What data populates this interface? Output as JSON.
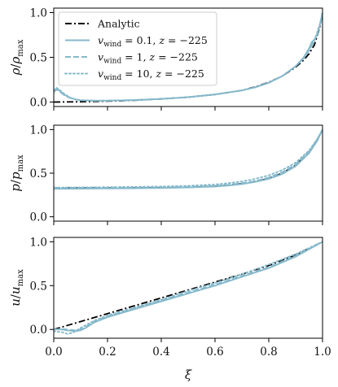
{
  "colors": {
    "analytic": "#000000",
    "numeric": "#86b9cb",
    "frame": "#000000",
    "legend_border": "#cccccc"
  },
  "chart_data": [
    {
      "type": "line",
      "ylabel": "ρ/ρ_max",
      "ylabel_parts": {
        "var": "ρ",
        "sep": "/",
        "base": "ρ",
        "sub": "max"
      },
      "xlim": [
        0.0,
        1.0
      ],
      "ylim": [
        -0.05,
        1.05
      ],
      "xticks": [
        0.0,
        0.2,
        0.4,
        0.6,
        0.8,
        1.0
      ],
      "xtick_labels_shown": false,
      "yticks": [
        0.0,
        0.5,
        1.0
      ],
      "ytick_labels": [
        "0.0",
        "0.5",
        "1.0"
      ],
      "legend": {
        "placement": "top-left",
        "entries": [
          {
            "style": "dashdot",
            "parts": [
              {
                "t": "Analytic"
              }
            ]
          },
          {
            "style": "solid",
            "parts": [
              {
                "t": "v",
                "i": true
              },
              {
                "t": "wind",
                "sub": true
              },
              {
                "t": " = 0.1, "
              },
              {
                "t": "z",
                "i": true
              },
              {
                "t": " = −225"
              }
            ]
          },
          {
            "style": "dashed",
            "parts": [
              {
                "t": "v",
                "i": true
              },
              {
                "t": "wind",
                "sub": true
              },
              {
                "t": " = 1, "
              },
              {
                "t": "z",
                "i": true
              },
              {
                "t": " = −225"
              }
            ]
          },
          {
            "style": "dotted",
            "parts": [
              {
                "t": "v",
                "i": true
              },
              {
                "t": "wind",
                "sub": true
              },
              {
                "t": " = 10, "
              },
              {
                "t": "z",
                "i": true
              },
              {
                "t": " = −225"
              }
            ]
          }
        ]
      },
      "series": [
        {
          "style": "dashdot",
          "color_key": "analytic",
          "x": [
            0.0,
            0.1,
            0.2,
            0.3,
            0.4,
            0.5,
            0.6,
            0.7,
            0.75,
            0.8,
            0.85,
            0.9,
            0.93,
            0.95,
            0.97,
            0.99,
            1.0
          ],
          "y": [
            0.0,
            0.003,
            0.01,
            0.02,
            0.035,
            0.055,
            0.085,
            0.13,
            0.17,
            0.22,
            0.29,
            0.39,
            0.47,
            0.54,
            0.64,
            0.84,
            1.0
          ]
        },
        {
          "style": "solid",
          "color_key": "numeric",
          "x": [
            0.0,
            0.01,
            0.02,
            0.04,
            0.06,
            0.08,
            0.1,
            0.15,
            0.2,
            0.3,
            0.4,
            0.5,
            0.6,
            0.7,
            0.75,
            0.8,
            0.85,
            0.9,
            0.93,
            0.95,
            0.96,
            0.97,
            0.98,
            0.99,
            1.0
          ],
          "y": [
            0.12,
            0.15,
            0.13,
            0.08,
            0.05,
            0.03,
            0.02,
            0.015,
            0.015,
            0.022,
            0.035,
            0.055,
            0.085,
            0.13,
            0.165,
            0.215,
            0.29,
            0.4,
            0.5,
            0.6,
            0.67,
            0.7,
            0.75,
            0.86,
            1.0
          ]
        },
        {
          "style": "dashed",
          "color_key": "numeric",
          "x": [
            0.0,
            0.01,
            0.02,
            0.04,
            0.06,
            0.08,
            0.1,
            0.15,
            0.2,
            0.3,
            0.4,
            0.5,
            0.6,
            0.7,
            0.75,
            0.8,
            0.85,
            0.9,
            0.93,
            0.95,
            0.97,
            0.99,
            1.0
          ],
          "y": [
            0.11,
            0.14,
            0.12,
            0.075,
            0.045,
            0.03,
            0.02,
            0.015,
            0.015,
            0.022,
            0.035,
            0.055,
            0.085,
            0.13,
            0.165,
            0.215,
            0.29,
            0.4,
            0.49,
            0.58,
            0.68,
            0.86,
            1.0
          ]
        },
        {
          "style": "dotted",
          "color_key": "numeric",
          "x": [
            0.0,
            0.01,
            0.02,
            0.04,
            0.06,
            0.08,
            0.1,
            0.15,
            0.2,
            0.3,
            0.4,
            0.5,
            0.6,
            0.7,
            0.75,
            0.8,
            0.85,
            0.9,
            0.93,
            0.95,
            0.97,
            0.99,
            1.0
          ],
          "y": [
            0.13,
            0.16,
            0.14,
            0.09,
            0.05,
            0.03,
            0.02,
            0.015,
            0.015,
            0.022,
            0.035,
            0.055,
            0.085,
            0.13,
            0.165,
            0.215,
            0.29,
            0.4,
            0.49,
            0.58,
            0.69,
            0.87,
            1.0
          ]
        }
      ]
    },
    {
      "type": "line",
      "ylabel": "p/p_max",
      "ylabel_parts": {
        "var": "p",
        "sep": "/",
        "base": "p",
        "sub": "max"
      },
      "xlim": [
        0.0,
        1.0
      ],
      "ylim": [
        -0.05,
        1.05
      ],
      "xticks": [
        0.0,
        0.2,
        0.4,
        0.6,
        0.8,
        1.0
      ],
      "xtick_labels_shown": false,
      "yticks": [
        0.0,
        0.5,
        1.0
      ],
      "ytick_labels": [
        "0.0",
        "0.5",
        "1.0"
      ],
      "series": [
        {
          "style": "dashdot",
          "color_key": "analytic",
          "x": [
            0.0,
            0.1,
            0.2,
            0.3,
            0.4,
            0.5,
            0.6,
            0.65,
            0.7,
            0.75,
            0.8,
            0.85,
            0.9,
            0.95,
            0.98,
            1.0
          ],
          "y": [
            0.33,
            0.33,
            0.33,
            0.331,
            0.333,
            0.338,
            0.35,
            0.362,
            0.38,
            0.405,
            0.44,
            0.5,
            0.59,
            0.74,
            0.88,
            1.0
          ]
        },
        {
          "style": "solid",
          "color_key": "numeric",
          "x": [
            0.0,
            0.1,
            0.2,
            0.3,
            0.4,
            0.5,
            0.6,
            0.65,
            0.7,
            0.75,
            0.8,
            0.85,
            0.9,
            0.95,
            0.98,
            1.0
          ],
          "y": [
            0.32,
            0.322,
            0.325,
            0.327,
            0.33,
            0.336,
            0.347,
            0.358,
            0.375,
            0.4,
            0.435,
            0.49,
            0.58,
            0.73,
            0.87,
            1.0
          ]
        },
        {
          "style": "dashed",
          "color_key": "numeric",
          "x": [
            0.0,
            0.1,
            0.2,
            0.3,
            0.4,
            0.5,
            0.6,
            0.65,
            0.7,
            0.75,
            0.8,
            0.85,
            0.9,
            0.95,
            0.98,
            1.0
          ],
          "y": [
            0.33,
            0.331,
            0.332,
            0.333,
            0.336,
            0.342,
            0.355,
            0.367,
            0.385,
            0.41,
            0.45,
            0.51,
            0.6,
            0.75,
            0.885,
            1.0
          ]
        },
        {
          "style": "dotted",
          "color_key": "numeric",
          "x": [
            0.0,
            0.1,
            0.2,
            0.3,
            0.4,
            0.5,
            0.6,
            0.65,
            0.7,
            0.75,
            0.8,
            0.85,
            0.9,
            0.95,
            0.98,
            1.0
          ],
          "y": [
            0.335,
            0.337,
            0.34,
            0.343,
            0.347,
            0.355,
            0.37,
            0.385,
            0.405,
            0.435,
            0.475,
            0.535,
            0.62,
            0.76,
            0.89,
            1.0
          ]
        }
      ]
    },
    {
      "type": "line",
      "ylabel": "u/u_max",
      "ylabel_parts": {
        "var": "u",
        "sep": "/",
        "base": "u",
        "sub": "max"
      },
      "xlabel": "ξ",
      "xlim": [
        0.0,
        1.0
      ],
      "ylim": [
        -0.1,
        1.05
      ],
      "xticks": [
        0.0,
        0.2,
        0.4,
        0.6,
        0.8,
        1.0
      ],
      "xtick_labels": [
        "0.0",
        "0.2",
        "0.4",
        "0.6",
        "0.8",
        "1.0"
      ],
      "xtick_labels_shown": true,
      "yticks": [
        0.0,
        0.5,
        1.0
      ],
      "ytick_labels": [
        "0.0",
        "0.5",
        "1.0"
      ],
      "series": [
        {
          "style": "dashdot",
          "color_key": "analytic",
          "x": [
            0.0,
            0.1,
            0.2,
            0.3,
            0.4,
            0.5,
            0.6,
            0.7,
            0.8,
            0.9,
            1.0
          ],
          "y": [
            0.0,
            0.09,
            0.18,
            0.27,
            0.36,
            0.45,
            0.54,
            0.63,
            0.73,
            0.85,
            1.0
          ]
        },
        {
          "style": "solid",
          "color_key": "numeric",
          "x": [
            0.0,
            0.03,
            0.05,
            0.08,
            0.1,
            0.12,
            0.15,
            0.2,
            0.3,
            0.4,
            0.5,
            0.6,
            0.7,
            0.8,
            0.9,
            1.0
          ],
          "y": [
            0.0,
            0.0,
            -0.01,
            -0.02,
            -0.01,
            0.02,
            0.08,
            0.14,
            0.23,
            0.32,
            0.41,
            0.5,
            0.6,
            0.7,
            0.83,
            1.0
          ]
        },
        {
          "style": "dashed",
          "color_key": "numeric",
          "x": [
            0.0,
            0.03,
            0.05,
            0.08,
            0.1,
            0.12,
            0.15,
            0.2,
            0.3,
            0.4,
            0.5,
            0.6,
            0.7,
            0.8,
            0.9,
            1.0
          ],
          "y": [
            0.0,
            0.005,
            0.0,
            -0.01,
            0.0,
            0.03,
            0.09,
            0.15,
            0.24,
            0.33,
            0.42,
            0.51,
            0.61,
            0.71,
            0.84,
            1.0
          ]
        },
        {
          "style": "dotted",
          "color_key": "numeric",
          "x": [
            0.0,
            0.03,
            0.05,
            0.07,
            0.09,
            0.12,
            0.15,
            0.2,
            0.3,
            0.4,
            0.5,
            0.6,
            0.7,
            0.8,
            0.9,
            1.0
          ],
          "y": [
            -0.02,
            -0.03,
            -0.05,
            -0.04,
            0.0,
            0.05,
            0.1,
            0.16,
            0.25,
            0.34,
            0.44,
            0.53,
            0.63,
            0.74,
            0.86,
            1.0
          ]
        }
      ]
    }
  ]
}
